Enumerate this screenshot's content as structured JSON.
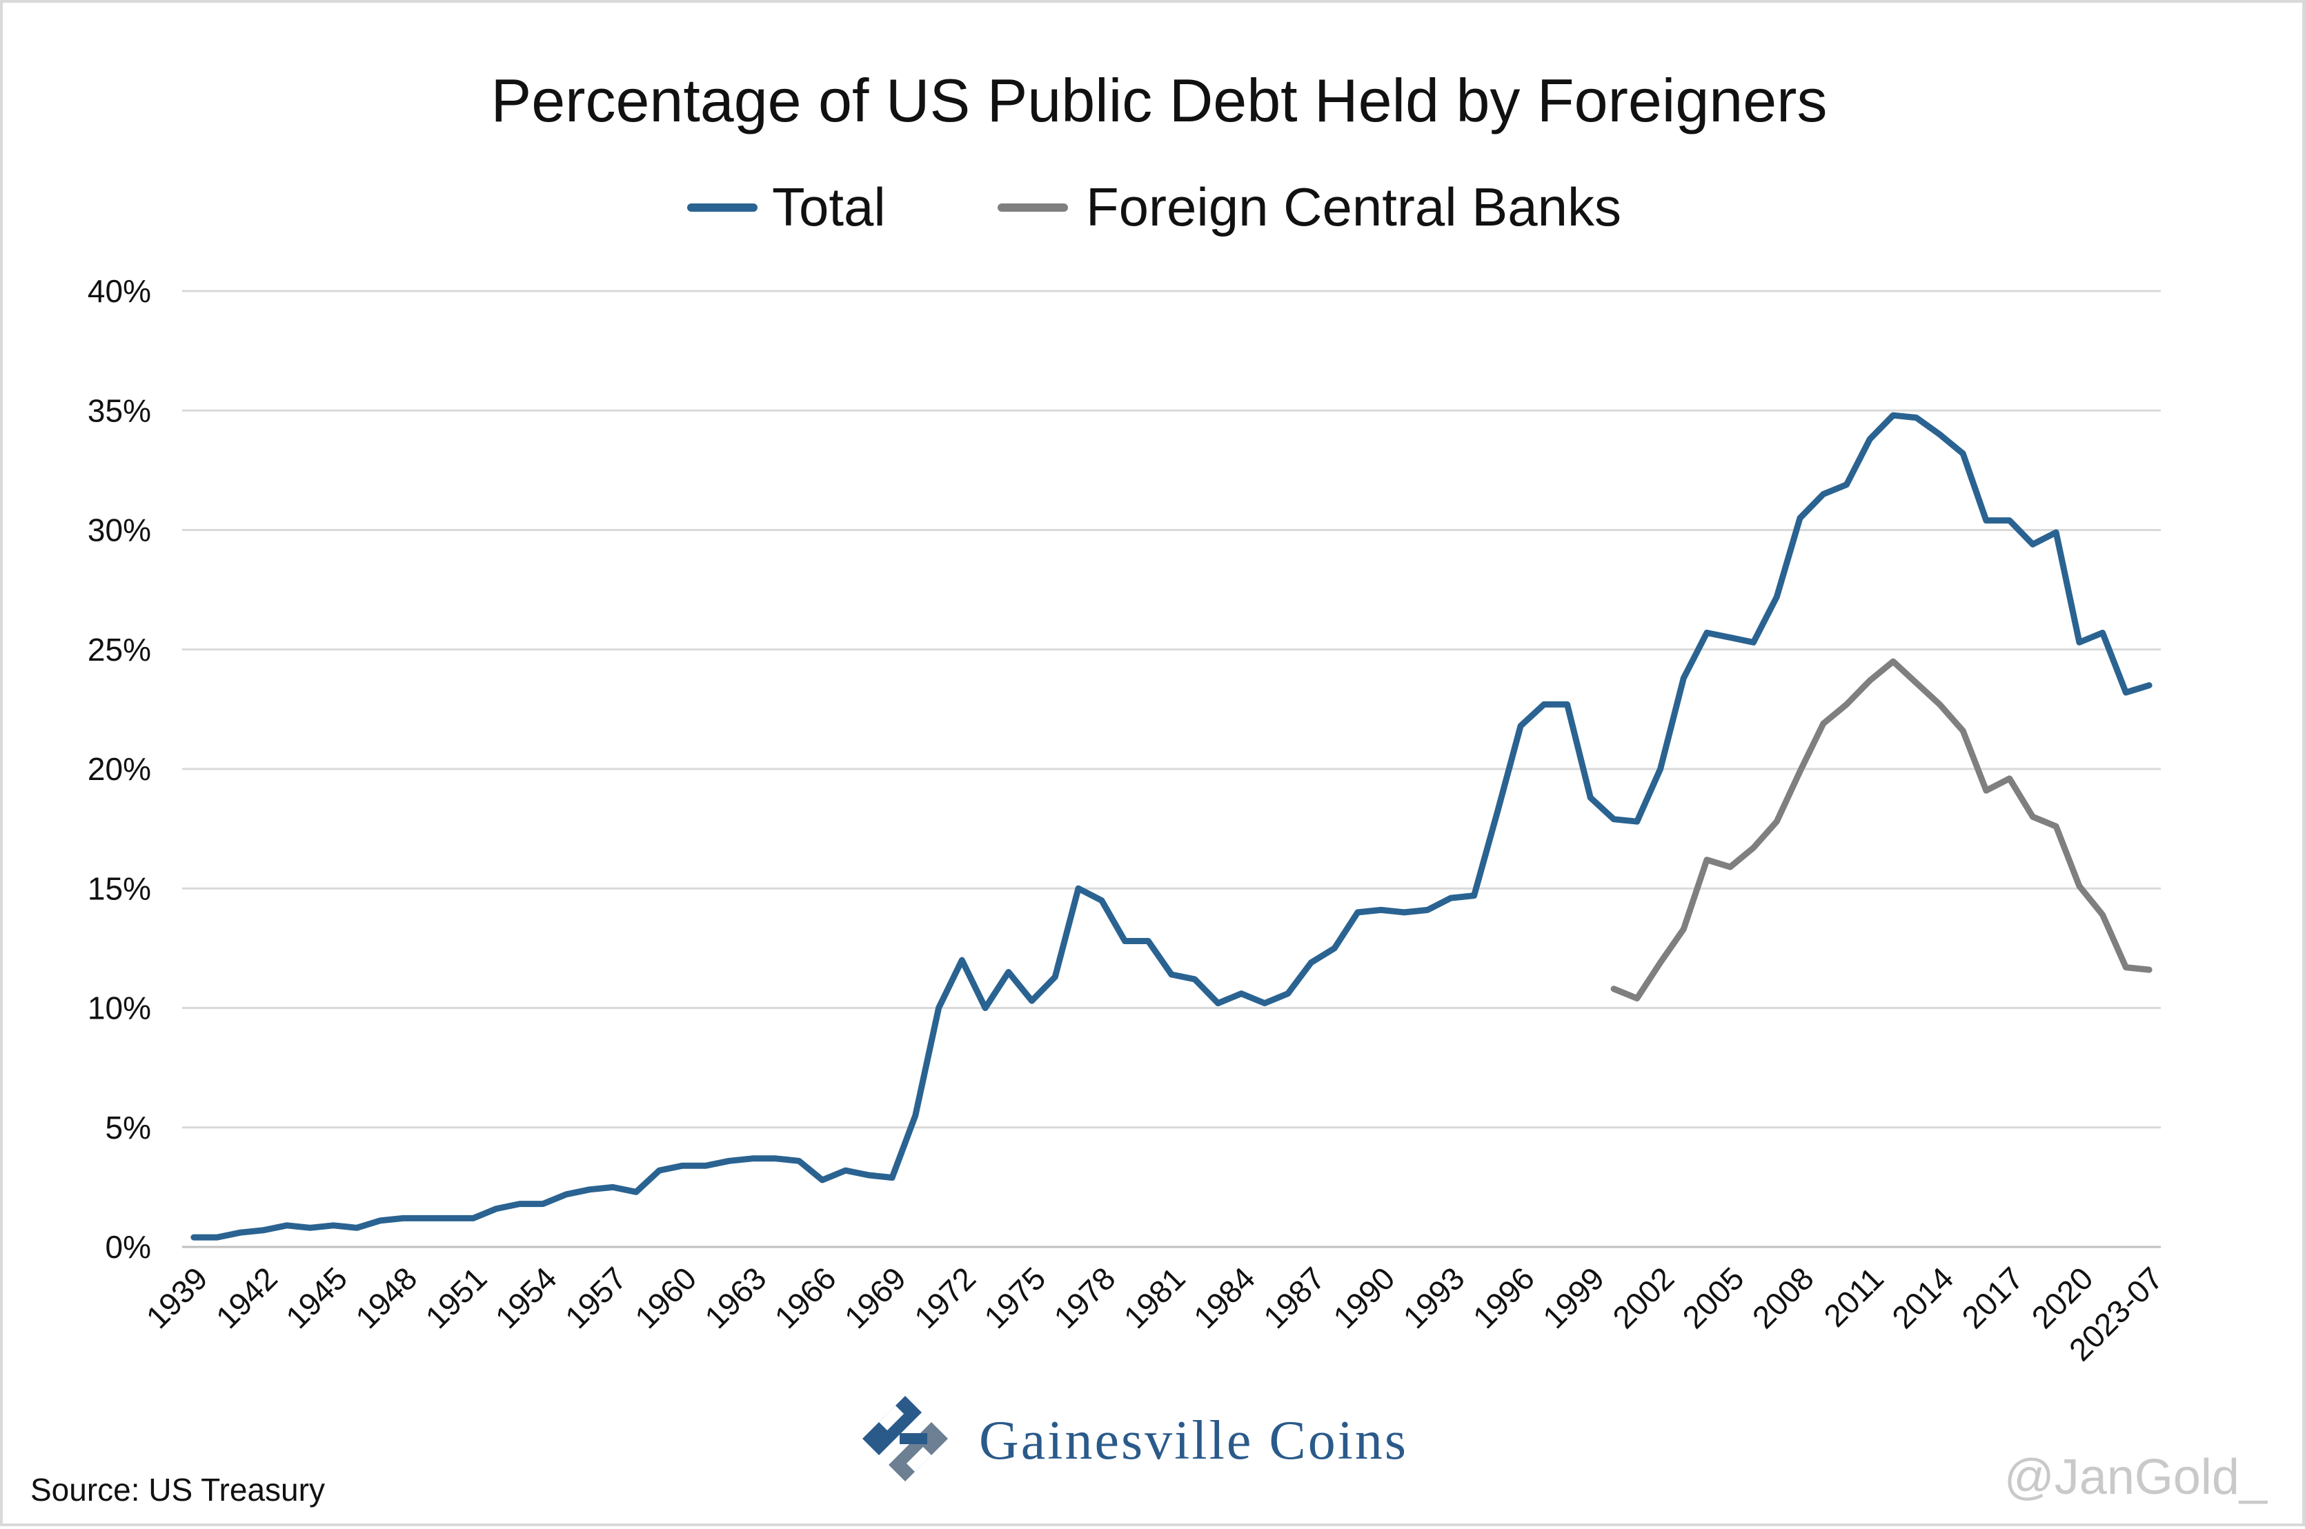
{
  "chart_data": {
    "type": "line",
    "title": "Percentage of US Public Debt Held by Foreigners",
    "x_tick_labels": [
      "1939",
      "1942",
      "1945",
      "1948",
      "1951",
      "1954",
      "1957",
      "1960",
      "1963",
      "1966",
      "1969",
      "1972",
      "1975",
      "1978",
      "1981",
      "1984",
      "1987",
      "1990",
      "1993",
      "1996",
      "1999",
      "2002",
      "2005",
      "2008",
      "2011",
      "2014",
      "2017",
      "2020",
      "2023-07"
    ],
    "y_tick_labels": [
      "0%",
      "5%",
      "10%",
      "15%",
      "20%",
      "25%",
      "30%",
      "35%",
      "40%"
    ],
    "ylim": [
      0,
      40
    ],
    "y_unit": "%",
    "grid": "horizontal",
    "legend_position": "top-center",
    "x": [
      "1939",
      "1940",
      "1941",
      "1942",
      "1943",
      "1944",
      "1945",
      "1946",
      "1947",
      "1948",
      "1949",
      "1950",
      "1951",
      "1952",
      "1953",
      "1954",
      "1955",
      "1956",
      "1957",
      "1958",
      "1959",
      "1960",
      "1961",
      "1962",
      "1963",
      "1964",
      "1965",
      "1966",
      "1967",
      "1968",
      "1969",
      "1970",
      "1971",
      "1972",
      "1973",
      "1974",
      "1975",
      "1976",
      "1977",
      "1978",
      "1979",
      "1980",
      "1981",
      "1982",
      "1983",
      "1984",
      "1985",
      "1986",
      "1987",
      "1988",
      "1989",
      "1990",
      "1991",
      "1992",
      "1993",
      "1994",
      "1995",
      "1996",
      "1997",
      "1998",
      "1999",
      "2000",
      "2001",
      "2002",
      "2003",
      "2004",
      "2005",
      "2006",
      "2007",
      "2008",
      "2009",
      "2010",
      "2011",
      "2012",
      "2013",
      "2014",
      "2015",
      "2016",
      "2017",
      "2018",
      "2019",
      "2020",
      "2021",
      "2022",
      "2023-07"
    ],
    "series": [
      {
        "name": "Total",
        "color": "#2a6391",
        "values": [
          0.4,
          0.4,
          0.6,
          0.7,
          0.9,
          0.8,
          0.9,
          0.8,
          1.1,
          1.2,
          1.2,
          1.2,
          1.2,
          1.6,
          1.8,
          1.8,
          2.2,
          2.4,
          2.5,
          2.3,
          3.2,
          3.4,
          3.4,
          3.6,
          3.7,
          3.7,
          3.6,
          2.8,
          3.2,
          3.0,
          2.9,
          5.5,
          10.0,
          12.0,
          10.0,
          11.5,
          10.3,
          11.3,
          15.0,
          14.5,
          12.8,
          12.8,
          11.4,
          11.2,
          10.2,
          10.6,
          10.2,
          10.6,
          11.9,
          12.5,
          14.0,
          14.1,
          14.0,
          14.1,
          14.6,
          14.7,
          18.2,
          21.8,
          22.7,
          22.7,
          18.8,
          17.9,
          17.8,
          20.0,
          23.8,
          25.7,
          25.5,
          25.3,
          27.2,
          30.5,
          31.5,
          31.9,
          33.8,
          34.8,
          34.7,
          34.0,
          33.2,
          30.4,
          30.4,
          29.4,
          29.9,
          25.3,
          25.7,
          23.2,
          23.5
        ]
      },
      {
        "name": "Foreign Central Banks",
        "color": "#7f7f7f",
        "values": [
          null,
          null,
          null,
          null,
          null,
          null,
          null,
          null,
          null,
          null,
          null,
          null,
          null,
          null,
          null,
          null,
          null,
          null,
          null,
          null,
          null,
          null,
          null,
          null,
          null,
          null,
          null,
          null,
          null,
          null,
          null,
          null,
          null,
          null,
          null,
          null,
          null,
          null,
          null,
          null,
          null,
          null,
          null,
          null,
          null,
          null,
          null,
          null,
          null,
          null,
          null,
          null,
          null,
          null,
          null,
          null,
          null,
          null,
          null,
          null,
          null,
          10.8,
          10.4,
          11.9,
          13.3,
          16.2,
          15.9,
          16.7,
          17.8,
          19.9,
          21.9,
          22.7,
          23.7,
          24.5,
          23.6,
          22.7,
          21.6,
          19.1,
          19.6,
          18.0,
          17.6,
          15.1,
          13.9,
          11.7,
          11.6
        ]
      }
    ]
  },
  "footer": {
    "source": "Source: US Treasury",
    "brand": "Gainesville Coins",
    "handle": "@JanGold_"
  },
  "colors": {
    "grid": "#d9d9d9",
    "axis": "#bfbfbf",
    "brand": "#2a5a8a"
  }
}
